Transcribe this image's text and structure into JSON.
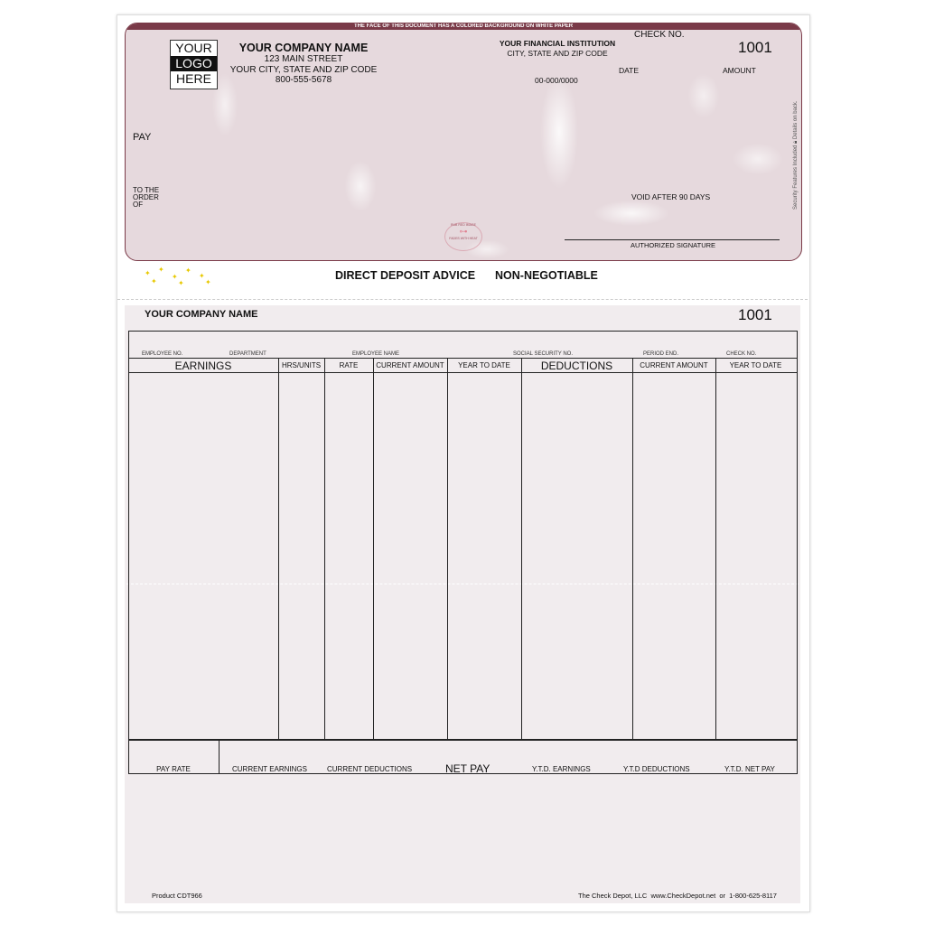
{
  "check": {
    "banner": "THE FACE OF THIS DOCUMENT HAS A COLORED BACKGROUND ON WHITE PAPER",
    "logo": [
      "YOUR",
      "LOGO",
      "HERE"
    ],
    "company_name": "YOUR COMPANY NAME",
    "street": "123 MAIN STREET",
    "city": "YOUR CITY, STATE AND ZIP CODE",
    "phone": "800-555-5678",
    "bank_name": "YOUR FINANCIAL INSTITUTION",
    "bank_city": "CITY, STATE AND ZIP CODE",
    "routing_fraction": "00-000/0000",
    "check_no_label": "CHECK NO.",
    "check_no": "1001",
    "date_label": "DATE",
    "amount_label": "AMOUNT",
    "pay_label": "PAY",
    "order_label": [
      "TO THE",
      "ORDER",
      "OF"
    ],
    "void_text": "VOID AFTER 90 DAYS",
    "signature_label": "AUTHORIZED SIGNATURE",
    "security_text": "Security Features Included",
    "details_text": "Details on back.",
    "seal_top": "RUB RED IMAGE",
    "seal_bottom": "FADES WITH HEAT"
  },
  "advice": {
    "title": "DIRECT DEPOSIT ADVICE",
    "non_negotiable": "NON-NEGOTIABLE"
  },
  "stub": {
    "company_name": "YOUR COMPANY NAME",
    "check_no": "1001",
    "info_labels": [
      "EMPLOYEE NO.",
      "DEPARTMENT",
      "EMPLOYEE NAME",
      "SOCIAL SECURITY NO.",
      "PERIOD END.",
      "CHECK NO."
    ],
    "columns": [
      "EARNINGS",
      "HRS/UNITS",
      "RATE",
      "CURRENT AMOUNT",
      "YEAR TO DATE",
      "DEDUCTIONS",
      "CURRENT AMOUNT",
      "YEAR TO DATE"
    ],
    "totals": [
      "PAY RATE",
      "CURRENT EARNINGS",
      "CURRENT DEDUCTIONS",
      "NET PAY",
      "Y.T.D. EARNINGS",
      "Y.T.D DEDUCTIONS",
      "Y.T.D. NET PAY"
    ]
  },
  "footer": {
    "product": "Product CDT966",
    "vendor": "The Check Depot, LLC  www.CheckDepot.net  or  1-800-625-8117"
  },
  "colors": {
    "check_border": "#7a3a48",
    "check_bg": "#e6d9dd",
    "stub_bg": "#f1ecee"
  }
}
